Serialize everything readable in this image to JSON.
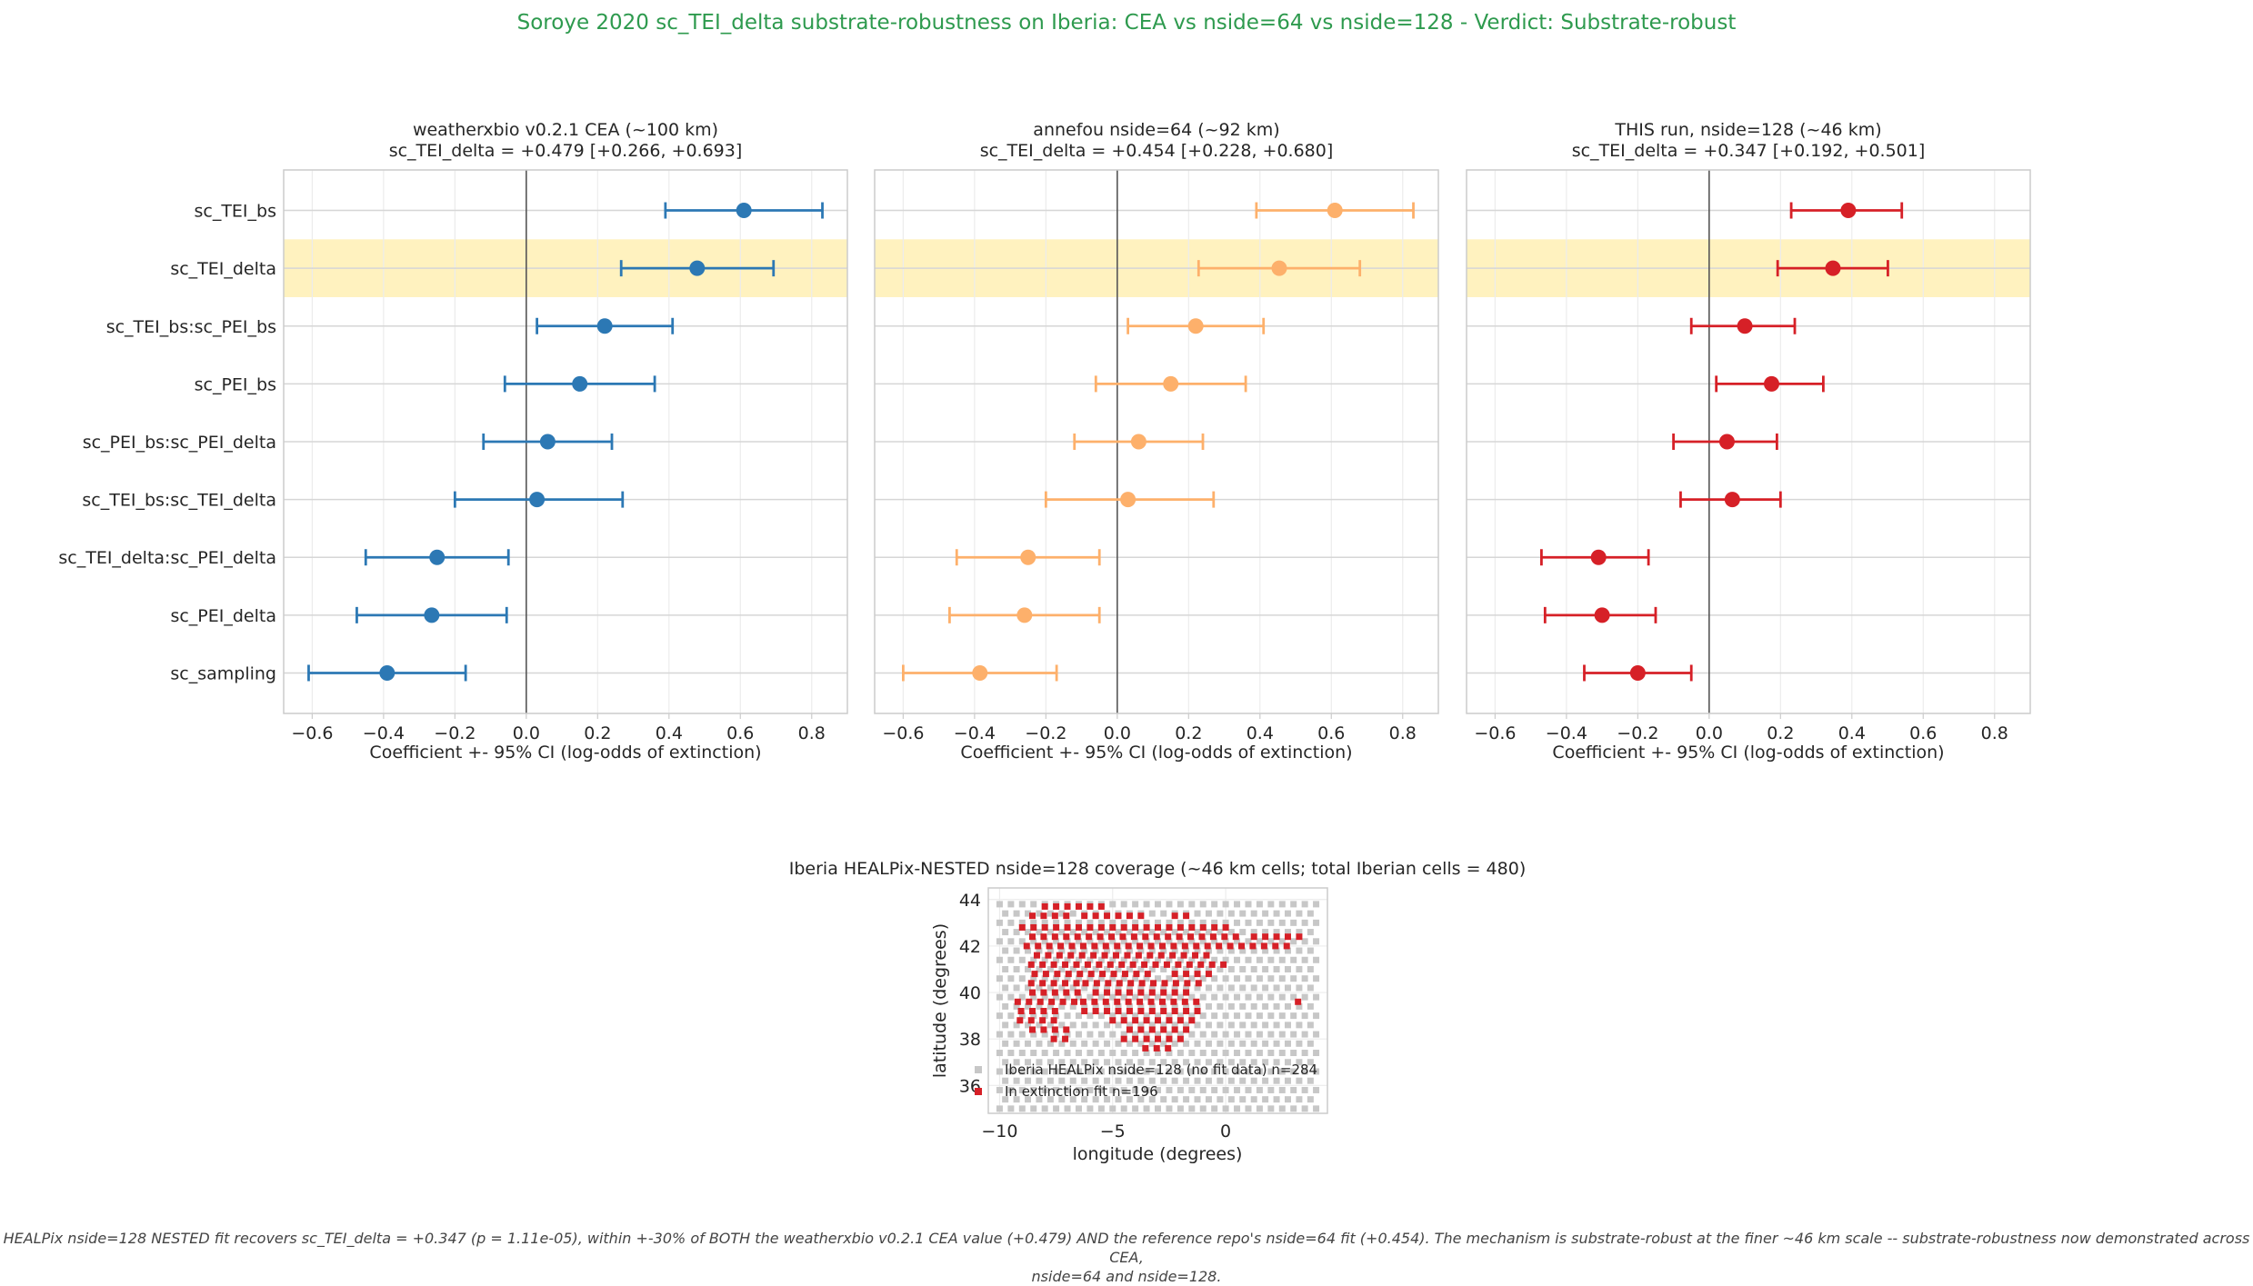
{
  "suptitle": "Soroye 2020 sc_TEI_delta substrate-robustness on Iberia: CEA vs nside=64 vs nside=128  -  Verdict: Substrate-robust",
  "suptitle_color": "#2e9a4e",
  "footnote": {
    "line1": "HEALPix nside=128 NESTED fit recovers sc_TEI_delta = +0.347 (p = 1.11e-05), within +-30% of BOTH the weatherxbio v0.2.1 CEA value (+0.479) AND the reference repo's nside=64 fit (+0.454). The mechanism is substrate-robust at the finer ~46 km scale -- substrate-robustness now demonstrated across CEA,",
    "line2": "nside=64 and nside=128."
  },
  "highlight_color": "#fff2bf",
  "chart_data": [
    {
      "type": "forest",
      "title_line1": "weatherxbio v0.2.1 CEA (~100 km)",
      "title_line2": "sc_TEI_delta = +0.479 [+0.266, +0.693]",
      "xlabel": "Coefficient +- 95% CI  (log-odds of extinction)",
      "xlim": [
        -0.68,
        0.9
      ],
      "xticks": [
        "-0.6",
        "-0.4",
        "-0.2",
        "0.0",
        "0.2",
        "0.4",
        "0.6",
        "0.8"
      ],
      "color": "#2c78b4",
      "highlight_term": "sc_TEI_delta",
      "terms": [
        "sc_TEI_bs",
        "sc_TEI_delta",
        "sc_TEI_bs:sc_PEI_bs",
        "sc_PEI_bs",
        "sc_PEI_bs:sc_PEI_delta",
        "sc_TEI_bs:sc_TEI_delta",
        "sc_TEI_delta:sc_PEI_delta",
        "sc_PEI_delta",
        "sc_sampling"
      ],
      "estimates": [
        0.61,
        0.479,
        0.22,
        0.15,
        0.06,
        0.03,
        -0.25,
        -0.265,
        -0.39
      ],
      "ci_low": [
        0.39,
        0.266,
        0.03,
        -0.06,
        -0.12,
        -0.2,
        -0.45,
        -0.475,
        -0.61
      ],
      "ci_high": [
        0.83,
        0.693,
        0.41,
        0.36,
        0.24,
        0.27,
        -0.05,
        -0.055,
        -0.17
      ]
    },
    {
      "type": "forest",
      "title_line1": "annefou nside=64 (~92 km)",
      "title_line2": "sc_TEI_delta = +0.454 [+0.228, +0.680]",
      "xlabel": "Coefficient +- 95% CI  (log-odds of extinction)",
      "xlim": [
        -0.68,
        0.9
      ],
      "xticks": [
        "-0.6",
        "-0.4",
        "-0.2",
        "0.0",
        "0.2",
        "0.4",
        "0.6",
        "0.8"
      ],
      "color": "#fdb06b",
      "highlight_term": "sc_TEI_delta",
      "terms": [
        "sc_TEI_bs",
        "sc_TEI_delta",
        "sc_TEI_bs:sc_PEI_bs",
        "sc_PEI_bs",
        "sc_PEI_bs:sc_PEI_delta",
        "sc_TEI_bs:sc_TEI_delta",
        "sc_TEI_delta:sc_PEI_delta",
        "sc_PEI_delta",
        "sc_sampling"
      ],
      "estimates": [
        0.61,
        0.454,
        0.22,
        0.15,
        0.06,
        0.03,
        -0.25,
        -0.26,
        -0.385
      ],
      "ci_low": [
        0.39,
        0.228,
        0.03,
        -0.06,
        -0.12,
        -0.2,
        -0.45,
        -0.47,
        -0.6
      ],
      "ci_high": [
        0.83,
        0.68,
        0.41,
        0.36,
        0.24,
        0.27,
        -0.05,
        -0.05,
        -0.17
      ]
    },
    {
      "type": "forest",
      "title_line1": "THIS run, nside=128 (~46 km)",
      "title_line2": "sc_TEI_delta = +0.347 [+0.192, +0.501]",
      "xlabel": "Coefficient +- 95% CI  (log-odds of extinction)",
      "xlim": [
        -0.68,
        0.9
      ],
      "xticks": [
        "-0.6",
        "-0.4",
        "-0.2",
        "0.0",
        "0.2",
        "0.4",
        "0.6",
        "0.8"
      ],
      "color": "#d62027",
      "highlight_term": "sc_TEI_delta",
      "terms": [
        "sc_TEI_bs",
        "sc_TEI_delta",
        "sc_TEI_bs:sc_PEI_bs",
        "sc_PEI_bs",
        "sc_PEI_bs:sc_PEI_delta",
        "sc_TEI_bs:sc_TEI_delta",
        "sc_TEI_delta:sc_PEI_delta",
        "sc_PEI_delta",
        "sc_sampling"
      ],
      "estimates": [
        0.39,
        0.347,
        0.1,
        0.175,
        0.05,
        0.065,
        -0.31,
        -0.3,
        -0.2
      ],
      "ci_low": [
        0.23,
        0.192,
        -0.05,
        0.02,
        -0.1,
        -0.08,
        -0.47,
        -0.46,
        -0.35
      ],
      "ci_high": [
        0.54,
        0.501,
        0.24,
        0.32,
        0.19,
        0.2,
        -0.17,
        -0.15,
        -0.05
      ]
    },
    {
      "type": "scatter",
      "title": "Iberia HEALPix-NESTED nside=128 coverage (~46 km cells; total Iberian cells = 480)",
      "xlabel": "longitude (degrees)",
      "ylabel": "latitude (degrees)",
      "xlim": [
        -10.5,
        4.5
      ],
      "ylim": [
        34.8,
        44.5
      ],
      "xticks": [
        "-10",
        "-5",
        "0"
      ],
      "yticks": [
        "36",
        "38",
        "40",
        "42",
        "44"
      ],
      "series": [
        {
          "name": "Iberia HEALPix nside=128 (no fit data)  n=284",
          "color": "#c7c7c7",
          "count": 284
        },
        {
          "name": "In extinction fit  n=196",
          "color": "#d62027",
          "count": 196
        }
      ],
      "fit_rows": [
        {
          "lat": 43.7,
          "segments": [
            [
              -8.0,
              -7.4
            ],
            [
              -7.0,
              -5.5
            ]
          ]
        },
        {
          "lat": 43.3,
          "segments": [
            [
              -8.8,
              -7.0
            ],
            [
              -6.5,
              -3.5
            ],
            [
              -2.5,
              -1.5
            ]
          ]
        },
        {
          "lat": 42.8,
          "segments": [
            [
              -9.0,
              -3.0
            ],
            [
              -2.5,
              0.0
            ]
          ]
        },
        {
          "lat": 42.4,
          "segments": [
            [
              -8.8,
              0.5
            ],
            [
              1.0,
              3.3
            ]
          ]
        },
        {
          "lat": 42.0,
          "segments": [
            [
              -8.8,
              2.8
            ]
          ]
        },
        {
          "lat": 41.6,
          "segments": [
            [
              -8.6,
              -0.5
            ]
          ]
        },
        {
          "lat": 41.2,
          "segments": [
            [
              -8.6,
              -3.0
            ],
            [
              -2.6,
              0.3
            ]
          ]
        },
        {
          "lat": 40.8,
          "segments": [
            [
              -8.7,
              -3.0
            ],
            [
              -2.5,
              -0.5
            ]
          ]
        },
        {
          "lat": 40.4,
          "segments": [
            [
              -8.6,
              -6.5
            ],
            [
              -6.2,
              -0.8
            ]
          ]
        },
        {
          "lat": 40.0,
          "segments": [
            [
              -8.8,
              -6.4
            ],
            [
              -6.0,
              -1.5
            ]
          ]
        },
        {
          "lat": 39.6,
          "segments": [
            [
              -9.2,
              -6.5
            ],
            [
              -6.3,
              -1.0
            ],
            [
              3.2,
              3.2
            ]
          ]
        },
        {
          "lat": 39.2,
          "segments": [
            [
              -9.3,
              -7.2
            ],
            [
              -6.5,
              -1.0
            ]
          ]
        },
        {
          "lat": 38.8,
          "segments": [
            [
              -9.1,
              -7.5
            ],
            [
              -5.0,
              -1.3
            ]
          ]
        },
        {
          "lat": 38.4,
          "segments": [
            [
              -8.8,
              -6.8
            ],
            [
              -4.5,
              -1.7
            ]
          ]
        },
        {
          "lat": 38.0,
          "segments": [
            [
              -7.6,
              -7.0
            ],
            [
              -4.5,
              -2.0
            ]
          ]
        },
        {
          "lat": 37.6,
          "segments": [
            [
              -3.8,
              -2.1
            ]
          ]
        }
      ]
    }
  ]
}
